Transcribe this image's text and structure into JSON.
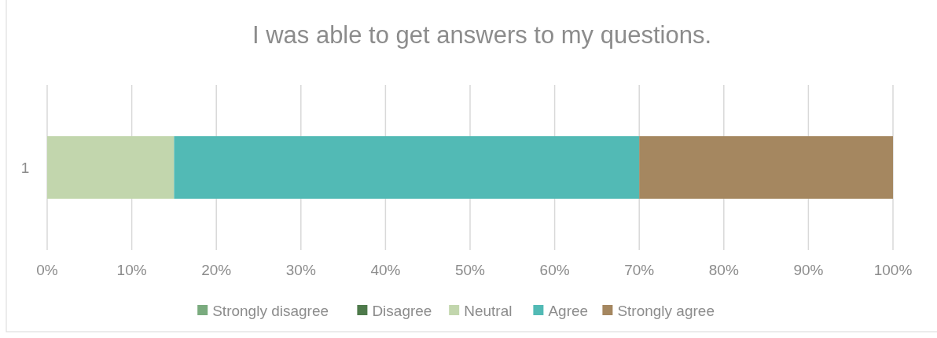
{
  "chart_data": {
    "type": "bar",
    "orientation": "horizontal",
    "stacked": true,
    "title": "I was able to get answers to my questions.",
    "categories": [
      "1"
    ],
    "series": [
      {
        "name": "Strongly disagree",
        "color": "#7aab7e",
        "values": [
          0
        ]
      },
      {
        "name": "Disagree",
        "color": "#4e7a4b",
        "values": [
          0
        ]
      },
      {
        "name": "Neutral",
        "color": "#c2d6ad",
        "values": [
          15
        ]
      },
      {
        "name": "Agree",
        "color": "#52bab5",
        "values": [
          55
        ]
      },
      {
        "name": "Strongly agree",
        "color": "#a58760",
        "values": [
          30
        ]
      }
    ],
    "xlim": [
      0,
      100
    ],
    "xticks": [
      {
        "value": 0,
        "label": "0%"
      },
      {
        "value": 10,
        "label": "10%"
      },
      {
        "value": 20,
        "label": "20%"
      },
      {
        "value": 30,
        "label": "30%"
      },
      {
        "value": 40,
        "label": "40%"
      },
      {
        "value": 50,
        "label": "50%"
      },
      {
        "value": 60,
        "label": "60%"
      },
      {
        "value": 70,
        "label": "70%"
      },
      {
        "value": 80,
        "label": "80%"
      },
      {
        "value": 90,
        "label": "90%"
      },
      {
        "value": 100,
        "label": "100%"
      }
    ],
    "grid": "x",
    "legend": "bottom"
  }
}
